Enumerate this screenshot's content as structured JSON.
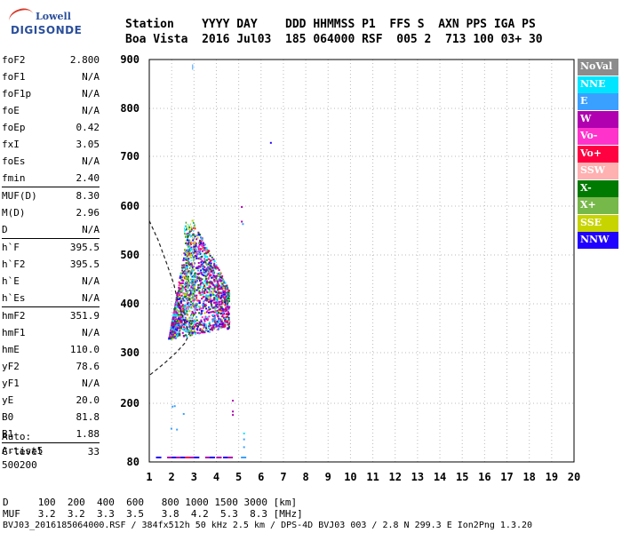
{
  "logo": {
    "line1": "Lowell",
    "line2": "DIGISONDE"
  },
  "header": {
    "labels": "Station    YYYY DAY    DDD HHMMSS P1  FFS S  AXN PPS IGA PS",
    "values": "Boa Vista  2016 Jul03  185 064000 RSF  005 2  713 100 03+ 30"
  },
  "params": {
    "group1": [
      {
        "k": "foF2",
        "v": "2.800"
      },
      {
        "k": "foF1",
        "v": "N/A"
      },
      {
        "k": "foF1p",
        "v": "N/A"
      },
      {
        "k": "foE",
        "v": "N/A"
      },
      {
        "k": "foEp",
        "v": "0.42"
      },
      {
        "k": "fxI",
        "v": "3.05"
      },
      {
        "k": "foEs",
        "v": "N/A"
      },
      {
        "k": "fmin",
        "v": "2.40"
      }
    ],
    "group2": [
      {
        "k": "MUF(D)",
        "v": "8.30"
      },
      {
        "k": "M(D)",
        "v": "2.96"
      },
      {
        "k": "D",
        "v": "N/A"
      }
    ],
    "group3": [
      {
        "k": "h`F",
        "v": "395.5"
      },
      {
        "k": "h`F2",
        "v": "395.5"
      },
      {
        "k": "h`E",
        "v": "N/A"
      },
      {
        "k": "h`Es",
        "v": "N/A"
      }
    ],
    "group4": [
      {
        "k": "hmF2",
        "v": "351.9"
      },
      {
        "k": "hmF1",
        "v": "N/A"
      },
      {
        "k": "hmE",
        "v": "110.0"
      },
      {
        "k": "yF2",
        "v": "78.6"
      },
      {
        "k": "yF1",
        "v": "N/A"
      },
      {
        "k": "yE",
        "v": "20.0"
      },
      {
        "k": "B0",
        "v": "81.8"
      },
      {
        "k": "B1",
        "v": "1.88"
      }
    ],
    "group5": [
      {
        "k": "C-level",
        "v": "33"
      }
    ]
  },
  "auto": {
    "line1": "Auto:",
    "line2": "Artist5",
    "line3": "500200"
  },
  "legend": [
    {
      "label": "NoVal",
      "color": "#8c8c8c"
    },
    {
      "label": "NNE",
      "color": "#00e5ff"
    },
    {
      "label": "E",
      "color": "#3aa0ff"
    },
    {
      "label": "W",
      "color": "#b000b0"
    },
    {
      "label": "Vo-",
      "color": "#ff33cc"
    },
    {
      "label": "Vo+",
      "color": "#ff0040"
    },
    {
      "label": "SSW",
      "color": "#ffb0b0"
    },
    {
      "label": "X-",
      "color": "#007a00"
    },
    {
      "label": "X+",
      "color": "#77b84a"
    },
    {
      "label": "SSE",
      "color": "#c8d400"
    },
    {
      "label": "NNW",
      "color": "#2000ff"
    }
  ],
  "bottom": {
    "line1": "D     100  200  400  600   800 1000 1500 3000 [km]",
    "line2": "MUF   3.2  3.2  3.3  3.5   3.8  4.2  5.3  8.3 [MHz]",
    "line3": "BVJ03_2016185064000.RSF / 384fx512h 50 kHz 2.5 km / DPS-4D BVJ03 003 / 2.8 N 299.3 E Ion2Png 1.3.20"
  },
  "chart_data": {
    "type": "scatter",
    "xlim": [
      1,
      20
    ],
    "ylim": [
      80,
      900
    ],
    "xticks": [
      "1",
      "2",
      "3",
      "4",
      "5",
      "6",
      "7",
      "8",
      "9",
      "10",
      "11",
      "12",
      "13",
      "14",
      "15",
      "16",
      "17",
      "18",
      "19",
      "20"
    ],
    "yticks": [
      "900",
      "800",
      "700",
      "600",
      "500",
      "400",
      "300",
      "200",
      "80"
    ],
    "grid": true,
    "clusters": [
      {
        "color": "#b000b0",
        "weight": 0.3
      },
      {
        "color": "#2000ff",
        "weight": 0.12
      },
      {
        "color": "#00e5ff",
        "weight": 0.12
      },
      {
        "color": "#3aa0ff",
        "weight": 0.1
      },
      {
        "color": "#007a00",
        "weight": 0.12
      },
      {
        "color": "#ff0040",
        "weight": 0.06
      },
      {
        "color": "#ff33cc",
        "weight": 0.08
      },
      {
        "color": "#c8d400",
        "weight": 0.05
      },
      {
        "color": "#77b84a",
        "weight": 0.05
      }
    ],
    "trace_body": {
      "x": [
        1.8,
        4.6
      ],
      "y": [
        330,
        600
      ]
    },
    "sparse_points": [
      {
        "x": 6.4,
        "y": 730,
        "color": "#2000ff"
      },
      {
        "x": 5.1,
        "y": 600,
        "color": "#b000b0"
      },
      {
        "x": 5.1,
        "y": 570,
        "color": "#b000b0"
      },
      {
        "x": 5.15,
        "y": 565,
        "color": "#3aa0ff"
      },
      {
        "x": 4.7,
        "y": 207,
        "color": "#b000b0"
      },
      {
        "x": 4.7,
        "y": 185,
        "color": "#b000b0"
      },
      {
        "x": 4.7,
        "y": 178,
        "color": "#b000b0"
      },
      {
        "x": 2.0,
        "y": 195,
        "color": "#3aa0ff"
      },
      {
        "x": 2.1,
        "y": 196,
        "color": "#3aa0ff"
      },
      {
        "x": 1.95,
        "y": 150,
        "color": "#3aa0ff"
      },
      {
        "x": 2.2,
        "y": 148,
        "color": "#3aa0ff"
      },
      {
        "x": 5.2,
        "y": 140,
        "color": "#00e5ff"
      },
      {
        "x": 5.2,
        "y": 128,
        "color": "#3aa0ff"
      },
      {
        "x": 5.2,
        "y": 112,
        "color": "#3aa0ff"
      },
      {
        "x": 2.5,
        "y": 180,
        "color": "#3aa0ff"
      }
    ],
    "baseline_points": [
      {
        "x": 1.3,
        "color": "#2000ff"
      },
      {
        "x": 1.8,
        "color": "#b000b0"
      },
      {
        "x": 2.0,
        "color": "#2000ff"
      },
      {
        "x": 2.2,
        "color": "#b000b0"
      },
      {
        "x": 2.4,
        "color": "#2000ff"
      },
      {
        "x": 2.6,
        "color": "#ff0040"
      },
      {
        "x": 2.8,
        "color": "#b000b0"
      },
      {
        "x": 3.0,
        "color": "#2000ff"
      },
      {
        "x": 3.5,
        "color": "#b000b0"
      },
      {
        "x": 3.7,
        "color": "#2000ff"
      },
      {
        "x": 4.0,
        "color": "#b000b0"
      },
      {
        "x": 4.3,
        "color": "#2000ff"
      },
      {
        "x": 4.5,
        "color": "#b000b0"
      },
      {
        "x": 5.1,
        "color": "#3aa0ff"
      }
    ],
    "dashed_curve": [
      {
        "x": 1.0,
        "y": 570
      },
      {
        "x": 1.4,
        "y": 530
      },
      {
        "x": 1.8,
        "y": 480
      },
      {
        "x": 2.1,
        "y": 440
      },
      {
        "x": 2.3,
        "y": 400
      },
      {
        "x": 2.6,
        "y": 360
      },
      {
        "x": 2.8,
        "y": 340
      },
      {
        "x": 2.6,
        "y": 320
      },
      {
        "x": 2.2,
        "y": 300
      },
      {
        "x": 1.7,
        "y": 280
      },
      {
        "x": 1.0,
        "y": 255
      }
    ]
  }
}
